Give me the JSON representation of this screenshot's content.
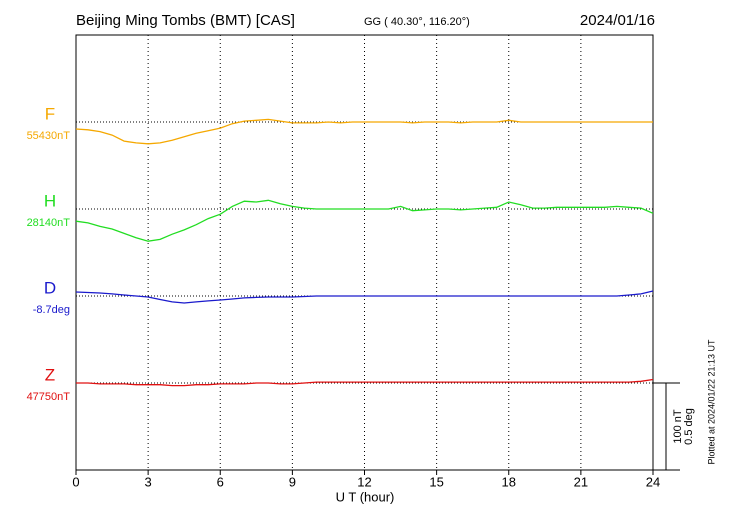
{
  "chart_data": {
    "type": "magnetogram",
    "title": "Beijing Ming Tombs (BMT)  [CAS]",
    "subtitle": "GG ( 40.30°, 116.20°)",
    "date": "2024/01/16",
    "xlabel": "U T (hour)",
    "footnote": "Plotted at 2024/01/22 21:13 UT",
    "xlim": [
      0,
      24
    ],
    "xticks": [
      0,
      3,
      6,
      9,
      12,
      15,
      18,
      21,
      24
    ],
    "scale": [
      {
        "value": 100,
        "label": "100 nT"
      },
      {
        "value": 0.5,
        "label": "0.5 deg",
        "axis": "y2"
      }
    ],
    "x": [
      0,
      0.5,
      1,
      1.5,
      2,
      2.5,
      3,
      3.5,
      4,
      4.5,
      5,
      5.5,
      6,
      6.5,
      7,
      7.5,
      8,
      8.5,
      9,
      9.5,
      10,
      10.5,
      11,
      11.5,
      12,
      12.5,
      13,
      13.5,
      14,
      14.5,
      15,
      15.5,
      16,
      16.5,
      17,
      17.5,
      18,
      18.5,
      19,
      19.5,
      20,
      20.5,
      21,
      21.5,
      22,
      22.5,
      23,
      23.5,
      24
    ],
    "series": [
      {
        "name": "F",
        "baseline": "55430nT",
        "color": "#f5a800",
        "values": [
          -8,
          -9,
          -11,
          -15,
          -22,
          -24,
          -25,
          -24,
          -21,
          -17,
          -13,
          -10,
          -7,
          -2,
          1,
          2,
          3,
          1,
          -1,
          -1,
          -1,
          0,
          -1,
          0,
          0,
          0,
          0,
          0,
          -1,
          0,
          0,
          0,
          -1,
          0,
          0,
          0,
          2,
          0,
          0,
          0,
          0,
          0,
          0,
          0,
          0,
          0,
          0,
          0,
          0
        ]
      },
      {
        "name": "H",
        "baseline": "28140nT",
        "color": "#22dd22",
        "values": [
          -14,
          -16,
          -20,
          -23,
          -28,
          -33,
          -37,
          -35,
          -29,
          -24,
          -18,
          -11,
          -6,
          3,
          9,
          8,
          10,
          6,
          3,
          1,
          0,
          0,
          0,
          0,
          0,
          0,
          0,
          3,
          -2,
          -1,
          0,
          0,
          -1,
          0,
          1,
          2,
          8,
          5,
          1,
          1,
          2,
          2,
          2,
          2,
          2,
          3,
          2,
          1,
          -5
        ]
      },
      {
        "name": "D",
        "baseline": "-8.7deg",
        "color": "#1a1acc",
        "axis": "y2",
        "values": [
          0.023,
          0.02,
          0.017,
          0.012,
          0.006,
          0,
          -0.006,
          -0.02,
          -0.034,
          -0.04,
          -0.034,
          -0.028,
          -0.023,
          -0.017,
          -0.011,
          -0.008,
          -0.006,
          -0.006,
          -0.006,
          -0.003,
          0,
          0,
          0,
          0,
          0,
          0,
          0,
          0,
          0,
          0,
          0,
          0,
          0,
          0,
          0,
          0,
          0,
          0,
          0,
          0,
          0,
          0,
          0,
          0,
          0,
          0,
          0.006,
          0.012,
          0.029
        ]
      },
      {
        "name": "Z",
        "baseline": "47750nT",
        "color": "#e01010",
        "values": [
          0,
          0,
          -1,
          -1,
          -1,
          -2,
          -2,
          -2,
          -3,
          -3,
          -2,
          -2,
          -1,
          -1,
          -1,
          0,
          0,
          -1,
          -1,
          0,
          1,
          1,
          1,
          1,
          1,
          1,
          1,
          1,
          1,
          1,
          1,
          1,
          1,
          1,
          1,
          1,
          1,
          1,
          1,
          1,
          1,
          1,
          1,
          1,
          1,
          1,
          1,
          2,
          4
        ]
      }
    ]
  }
}
